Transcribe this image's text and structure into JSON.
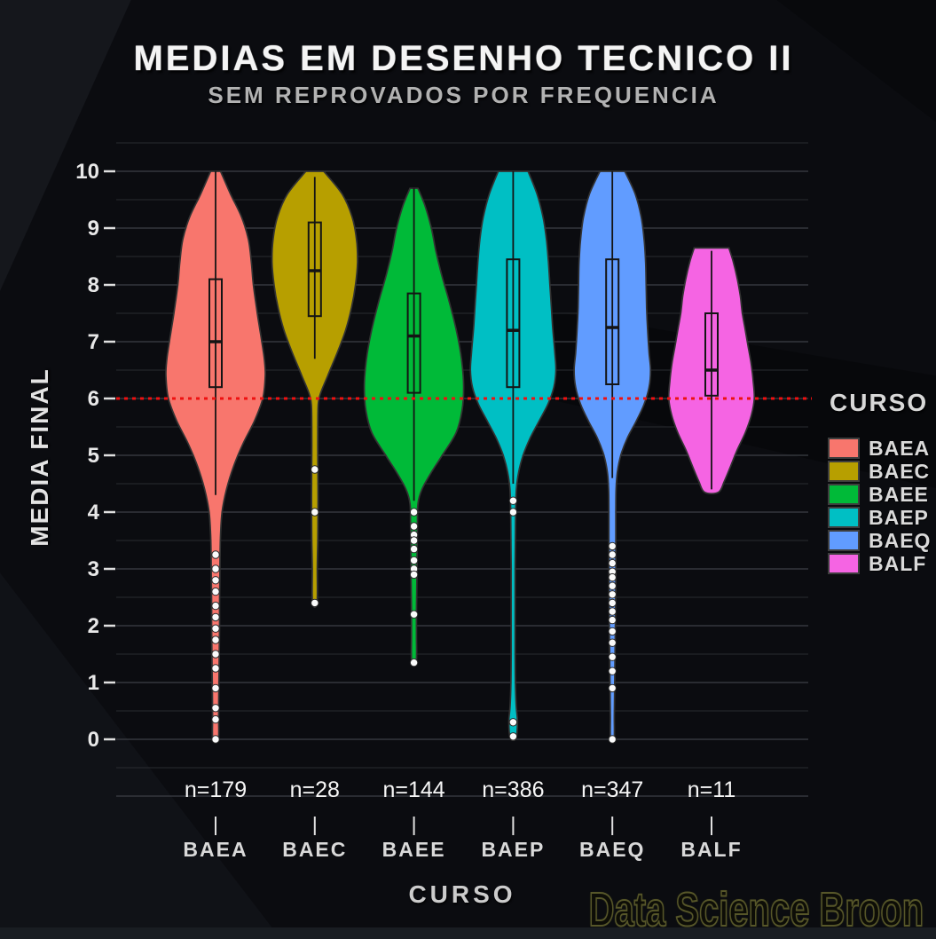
{
  "chart_data": {
    "type": "violin",
    "title": "MEDIAS EM DESENHO TECNICO II",
    "subtitle": "SEM REPROVADOS POR FREQUENCIA",
    "xlabel": "CURSO",
    "ylabel": "MEDIA FINAL",
    "legend_title": "CURSO",
    "watermark": "Data Science Broon",
    "ylim": [
      -1,
      10.5
    ],
    "yticks": [
      0,
      1,
      2,
      3,
      4,
      5,
      6,
      7,
      8,
      9,
      10
    ],
    "grid": "major+minor",
    "legend_position": "right",
    "reference_line": {
      "y": 6,
      "style": "dotted",
      "color": "#ee1111"
    },
    "colors": {
      "background": "#0b0c10",
      "grid_major": "#3d4046",
      "grid_minor": "#2a2c31",
      "tick": "#e0e0e0",
      "box_stroke": "#141414",
      "outlier_fill": "#fafafa",
      "reference": "#ee1111"
    },
    "groups": [
      {
        "name": "BAEA",
        "n": 179,
        "n_label": "n=179",
        "color": "#F8766D",
        "box": {
          "q1": 6.2,
          "median": 7.0,
          "q3": 8.1,
          "whisker_low": 4.3,
          "whisker_high": 10.0
        },
        "violin_range": [
          0,
          10
        ],
        "outliers": [
          3.25,
          3.0,
          2.8,
          2.6,
          2.35,
          2.15,
          1.95,
          1.75,
          1.5,
          1.25,
          0.9,
          0.55,
          0.35,
          0
        ],
        "violin_profile": [
          [
            10,
            0.1
          ],
          [
            9.6,
            0.3
          ],
          [
            9.2,
            0.52
          ],
          [
            8.8,
            0.66
          ],
          [
            8.4,
            0.72
          ],
          [
            8.0,
            0.76
          ],
          [
            7.5,
            0.84
          ],
          [
            7.0,
            0.93
          ],
          [
            6.7,
            0.98
          ],
          [
            6.4,
            1.0
          ],
          [
            6.0,
            0.95
          ],
          [
            5.6,
            0.78
          ],
          [
            5.2,
            0.55
          ],
          [
            4.8,
            0.36
          ],
          [
            4.4,
            0.22
          ],
          [
            4.0,
            0.13
          ],
          [
            3.6,
            0.1
          ],
          [
            3.2,
            0.09
          ],
          [
            2.8,
            0.085
          ],
          [
            2.4,
            0.08
          ],
          [
            2.0,
            0.08
          ],
          [
            1.6,
            0.075
          ],
          [
            1.2,
            0.07
          ],
          [
            0.8,
            0.065
          ],
          [
            0.4,
            0.06
          ],
          [
            0,
            0.055
          ]
        ]
      },
      {
        "name": "BAEC",
        "n": 28,
        "n_label": "n=28",
        "color": "#B79F00",
        "box": {
          "q1": 7.45,
          "median": 8.25,
          "q3": 9.1,
          "whisker_low": 6.7,
          "whisker_high": 9.9
        },
        "violin_range": [
          2.4,
          10
        ],
        "outliers": [
          4.75,
          4.0,
          2.4
        ],
        "violin_profile": [
          [
            10,
            0.18
          ],
          [
            9.6,
            0.55
          ],
          [
            9.2,
            0.75
          ],
          [
            8.8,
            0.84
          ],
          [
            8.4,
            0.86
          ],
          [
            8.0,
            0.82
          ],
          [
            7.6,
            0.74
          ],
          [
            7.2,
            0.62
          ],
          [
            6.8,
            0.45
          ],
          [
            6.4,
            0.26
          ],
          [
            6.1,
            0.12
          ],
          [
            5.9,
            0.07
          ],
          [
            5.5,
            0.06
          ],
          [
            5.0,
            0.06
          ],
          [
            4.5,
            0.065
          ],
          [
            4.0,
            0.065
          ],
          [
            3.5,
            0.06
          ],
          [
            3.0,
            0.05
          ],
          [
            2.4,
            0.045
          ]
        ]
      },
      {
        "name": "BAEE",
        "n": 144,
        "n_label": "n=144",
        "color": "#00BA38",
        "box": {
          "q1": 6.1,
          "median": 7.1,
          "q3": 7.85,
          "whisker_low": 4.2,
          "whisker_high": 9.7
        },
        "violin_range": [
          1.35,
          9.7
        ],
        "outliers": [
          4.0,
          3.75,
          3.6,
          3.5,
          3.35,
          3.15,
          3.0,
          2.9,
          2.2,
          1.35
        ],
        "violin_profile": [
          [
            9.7,
            0.08
          ],
          [
            9.4,
            0.22
          ],
          [
            9.0,
            0.35
          ],
          [
            8.6,
            0.44
          ],
          [
            8.2,
            0.55
          ],
          [
            7.8,
            0.68
          ],
          [
            7.4,
            0.8
          ],
          [
            7.0,
            0.9
          ],
          [
            6.6,
            0.97
          ],
          [
            6.2,
            1.0
          ],
          [
            5.8,
            0.97
          ],
          [
            5.4,
            0.85
          ],
          [
            5.0,
            0.57
          ],
          [
            4.7,
            0.35
          ],
          [
            4.4,
            0.16
          ],
          [
            4.15,
            0.08
          ],
          [
            3.8,
            0.07
          ],
          [
            3.4,
            0.065
          ],
          [
            3.0,
            0.06
          ],
          [
            2.6,
            0.055
          ],
          [
            2.2,
            0.05
          ],
          [
            1.8,
            0.05
          ],
          [
            1.35,
            0.045
          ]
        ]
      },
      {
        "name": "BAEP",
        "n": 386,
        "n_label": "n=386",
        "color": "#00BFC4",
        "box": {
          "q1": 6.2,
          "median": 7.2,
          "q3": 8.45,
          "whisker_low": 4.5,
          "whisker_high": 10.0
        },
        "violin_range": [
          0,
          10
        ],
        "outliers": [
          4.2,
          4.0,
          0.3,
          0.05
        ],
        "violin_profile": [
          [
            10,
            0.3
          ],
          [
            9.6,
            0.48
          ],
          [
            9.2,
            0.6
          ],
          [
            8.8,
            0.67
          ],
          [
            8.4,
            0.71
          ],
          [
            8.0,
            0.74
          ],
          [
            7.6,
            0.77
          ],
          [
            7.2,
            0.8
          ],
          [
            6.8,
            0.84
          ],
          [
            6.5,
            0.86
          ],
          [
            6.2,
            0.82
          ],
          [
            5.9,
            0.7
          ],
          [
            5.6,
            0.52
          ],
          [
            5.3,
            0.34
          ],
          [
            5.0,
            0.2
          ],
          [
            4.7,
            0.11
          ],
          [
            4.4,
            0.065
          ],
          [
            4.0,
            0.05
          ],
          [
            3.5,
            0.045
          ],
          [
            3.0,
            0.04
          ],
          [
            2.5,
            0.04
          ],
          [
            2.0,
            0.04
          ],
          [
            1.5,
            0.04
          ],
          [
            1.0,
            0.045
          ],
          [
            0.6,
            0.06
          ],
          [
            0.35,
            0.085
          ],
          [
            0.15,
            0.08
          ],
          [
            0,
            0.05
          ]
        ]
      },
      {
        "name": "BAEQ",
        "n": 347,
        "n_label": "n=347",
        "color": "#619CFF",
        "box": {
          "q1": 6.25,
          "median": 7.25,
          "q3": 8.45,
          "whisker_low": 4.6,
          "whisker_high": 10.0
        },
        "violin_range": [
          0,
          10
        ],
        "outliers": [
          3.4,
          3.25,
          3.1,
          2.95,
          2.85,
          2.7,
          2.55,
          2.4,
          2.25,
          2.1,
          1.9,
          1.7,
          1.45,
          1.2,
          0.9,
          0
        ],
        "violin_profile": [
          [
            10,
            0.25
          ],
          [
            9.6,
            0.46
          ],
          [
            9.2,
            0.58
          ],
          [
            8.8,
            0.64
          ],
          [
            8.4,
            0.67
          ],
          [
            8.0,
            0.68
          ],
          [
            7.6,
            0.69
          ],
          [
            7.2,
            0.71
          ],
          [
            6.8,
            0.74
          ],
          [
            6.5,
            0.77
          ],
          [
            6.2,
            0.74
          ],
          [
            5.9,
            0.64
          ],
          [
            5.6,
            0.48
          ],
          [
            5.3,
            0.3
          ],
          [
            5.0,
            0.17
          ],
          [
            4.7,
            0.1
          ],
          [
            4.4,
            0.075
          ],
          [
            4.0,
            0.07
          ],
          [
            3.6,
            0.07
          ],
          [
            3.2,
            0.07
          ],
          [
            2.8,
            0.07
          ],
          [
            2.4,
            0.065
          ],
          [
            2.0,
            0.06
          ],
          [
            1.6,
            0.055
          ],
          [
            1.2,
            0.05
          ],
          [
            0.8,
            0.045
          ],
          [
            0.4,
            0.04
          ],
          [
            0,
            0.035
          ]
        ]
      },
      {
        "name": "BALF",
        "n": 11,
        "n_label": "n=11",
        "color": "#F564E3",
        "box": {
          "q1": 6.05,
          "median": 6.5,
          "q3": 7.5,
          "whisker_low": 4.4,
          "whisker_high": 8.6
        },
        "violin_range": [
          4.35,
          8.65
        ],
        "outliers": [],
        "violin_profile": [
          [
            8.65,
            0.35
          ],
          [
            8.4,
            0.44
          ],
          [
            8.1,
            0.52
          ],
          [
            7.8,
            0.58
          ],
          [
            7.5,
            0.62
          ],
          [
            7.2,
            0.68
          ],
          [
            6.9,
            0.74
          ],
          [
            6.6,
            0.8
          ],
          [
            6.3,
            0.84
          ],
          [
            6.0,
            0.86
          ],
          [
            5.7,
            0.8
          ],
          [
            5.4,
            0.68
          ],
          [
            5.1,
            0.52
          ],
          [
            4.8,
            0.38
          ],
          [
            4.55,
            0.26
          ],
          [
            4.35,
            0.14
          ]
        ]
      }
    ]
  }
}
